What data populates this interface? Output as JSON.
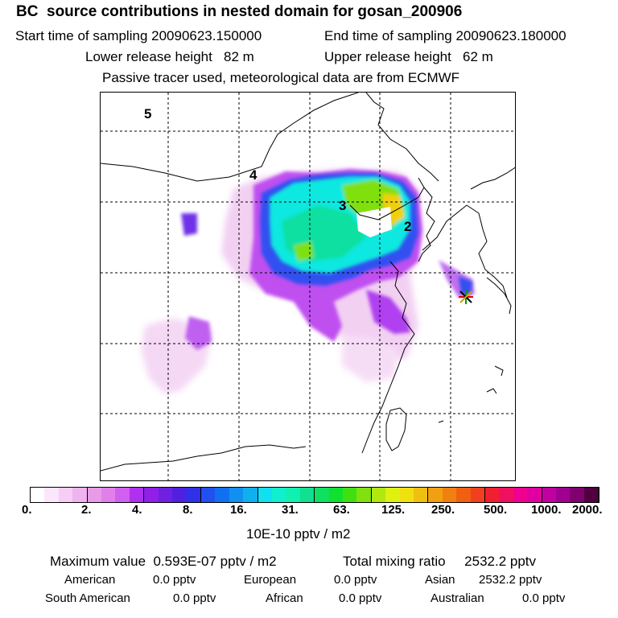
{
  "header": {
    "title": "BC  source contributions in nested domain for gosan_200906",
    "start_time": "Start time of sampling 20090623.150000",
    "end_time": "End time of sampling 20090623.180000",
    "lower_release": "Lower release height   82 m",
    "upper_release": "Upper release height   62 m",
    "note": "Passive tracer used, meteorological data are from ECMWF"
  },
  "map": {
    "region_labels": [
      "5",
      "4",
      "3",
      "2"
    ]
  },
  "colorbar": {
    "colors": [
      "#ffffff",
      "#fbe6fb",
      "#f5cdf5",
      "#efb3ef",
      "#e89be8",
      "#e080e8",
      "#d060f0",
      "#b030f0",
      "#9020e8",
      "#7020e0",
      "#5020e0",
      "#3030e8",
      "#2050f0",
      "#1070f0",
      "#1090f0",
      "#10b0f0",
      "#10e0f0",
      "#10f0d0",
      "#10f0b0",
      "#10e090",
      "#10e060",
      "#10e030",
      "#40e010",
      "#80e010",
      "#b0e810",
      "#e0f010",
      "#f0e010",
      "#f0c010",
      "#f0a010",
      "#f08010",
      "#f06010",
      "#f04020",
      "#f02030",
      "#f01060",
      "#f00090",
      "#e000a0",
      "#c000a0",
      "#a00090",
      "#800070",
      "#500040"
    ],
    "tick_labels": [
      "0.",
      "2.",
      "4.",
      "8.",
      "16.",
      "31.",
      "63.",
      "125.",
      "250.",
      "500.",
      "1000.",
      "2000."
    ],
    "unit": "10E-10 pptv / m2"
  },
  "stats": {
    "max_value": "Maximum value  0.593E-07 pptv / m2",
    "total_mixing": "Total mixing ratio     2532.2 pptv",
    "american": "American",
    "american_val": "0.0 pptv",
    "european": "European",
    "european_val": "0.0 pptv",
    "asian": "Asian",
    "asian_val": "2532.2 pptv",
    "south_american": "South American",
    "south_american_val": "0.0 pptv",
    "african": "African",
    "african_val": "0.0 pptv",
    "australian": "Australian",
    "australian_val": "0.0 pptv"
  }
}
